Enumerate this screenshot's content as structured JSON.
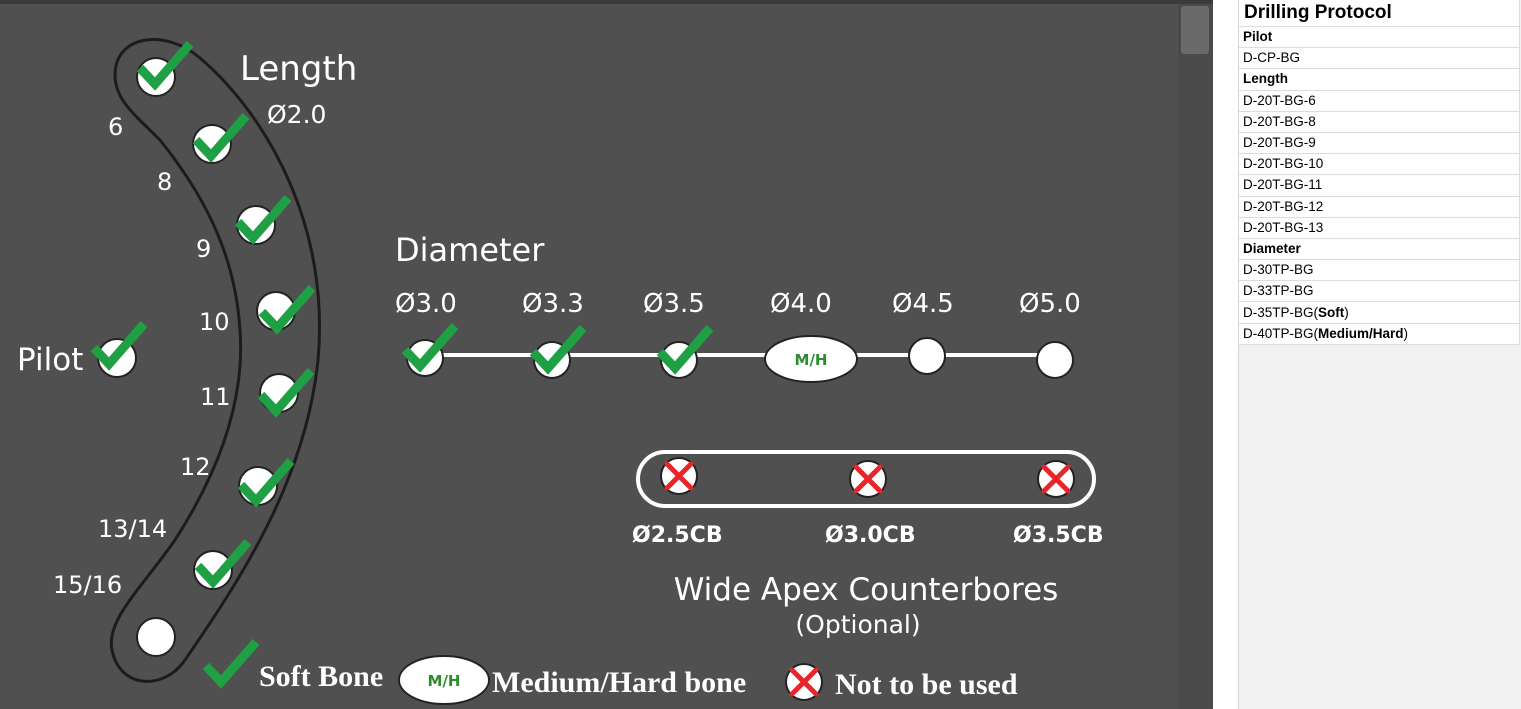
{
  "diagram": {
    "length_title": "Length",
    "length_diameter": "Ø2.0",
    "diameter_title": "Diameter",
    "pilot_label": "Pilot",
    "length_steps": [
      {
        "label": "6",
        "state": "soft"
      },
      {
        "label": "8",
        "state": "soft"
      },
      {
        "label": "9",
        "state": "soft"
      },
      {
        "label": "10",
        "state": "soft"
      },
      {
        "label": "11",
        "state": "soft"
      },
      {
        "label": "12",
        "state": "soft"
      },
      {
        "label": "13/14",
        "state": "soft"
      },
      {
        "label": "15/16",
        "state": "none"
      }
    ],
    "diameter_steps": [
      {
        "label": "Ø3.0",
        "state": "soft"
      },
      {
        "label": "Ø3.3",
        "state": "soft"
      },
      {
        "label": "Ø3.5",
        "state": "soft"
      },
      {
        "label": "Ø4.0",
        "state": "mh",
        "badge": "M/H"
      },
      {
        "label": "Ø4.5",
        "state": "none"
      },
      {
        "label": "Ø5.0",
        "state": "none"
      }
    ],
    "counterbores": {
      "labels": [
        "Ø2.5CB",
        "Ø3.0CB",
        "Ø3.5CB"
      ],
      "state": "not-used",
      "title": "Wide Apex Counterbores",
      "subtitle": "(Optional)"
    },
    "legend": {
      "soft_label": "Soft Bone",
      "mh_badge": "M/H",
      "mh_label": "Medium/Hard bone",
      "x_label": "Not to be used"
    },
    "colors": {
      "background": "#505050",
      "check": "#1fa045",
      "cross": "#e8262a",
      "node": "#ffffff",
      "mh_text": "#2e8b2e"
    }
  },
  "protocol": {
    "title": "Drilling Protocol",
    "rows": [
      {
        "text": "Pilot",
        "type": "head"
      },
      {
        "text": "D-CP-BG",
        "type": "item"
      },
      {
        "text": "Length",
        "type": "head"
      },
      {
        "text": "D-20T-BG-6",
        "type": "item"
      },
      {
        "text": "D-20T-BG-8",
        "type": "item"
      },
      {
        "text": "D-20T-BG-9",
        "type": "item"
      },
      {
        "text": "D-20T-BG-10",
        "type": "item"
      },
      {
        "text": "D-20T-BG-11",
        "type": "item"
      },
      {
        "text": "D-20T-BG-12",
        "type": "item"
      },
      {
        "text": "D-20T-BG-13",
        "type": "item"
      },
      {
        "text": "Diameter",
        "type": "head"
      },
      {
        "text": "D-30TP-BG",
        "type": "item"
      },
      {
        "text": "D-33TP-BG",
        "type": "item"
      },
      {
        "text": "D-35TP-BG",
        "suffix": "Soft",
        "type": "item"
      },
      {
        "text": "D-40TP-BG",
        "suffix": "Medium/Hard",
        "type": "item"
      }
    ]
  }
}
